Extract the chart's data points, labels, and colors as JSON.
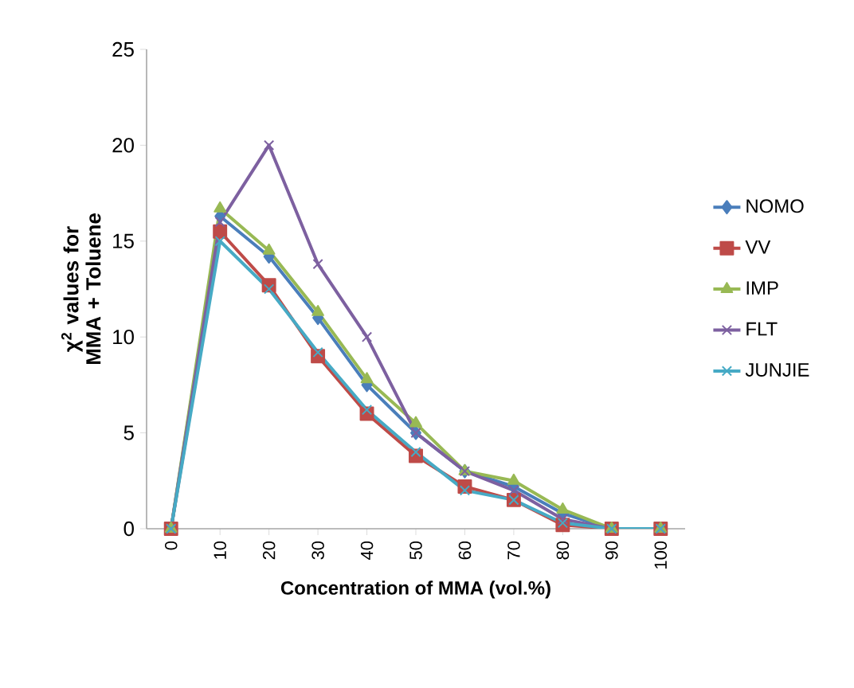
{
  "chart_data": {
    "type": "line",
    "xlabel": "Concentration of MMA (vol.%)",
    "ylabel": "χ$^{2}$ values for MMA + Toluene",
    "categories": [
      "0",
      "10",
      "20",
      "30",
      "40",
      "50",
      "60",
      "70",
      "80",
      "90",
      "100"
    ],
    "ylim": [
      0,
      25
    ],
    "yticks": [
      0,
      5,
      10,
      15,
      20,
      25
    ],
    "legend": "right",
    "grid": false,
    "series": [
      {
        "name": "NOMO",
        "color": "#4a7ebb",
        "marker": "diamond",
        "values": [
          0,
          16.3,
          14.2,
          11,
          7.5,
          5,
          3,
          2.2,
          0.8,
          0,
          0
        ]
      },
      {
        "name": "VV",
        "color": "#be4b48",
        "marker": "square",
        "values": [
          0,
          15.5,
          12.7,
          9,
          6,
          3.8,
          2.2,
          1.5,
          0.2,
          0,
          0
        ]
      },
      {
        "name": "IMP",
        "color": "#98b954",
        "marker": "triangle",
        "values": [
          0,
          16.7,
          14.5,
          11.3,
          7.8,
          5.5,
          3,
          2.5,
          1,
          0,
          0
        ]
      },
      {
        "name": "FLT",
        "color": "#7d60a0",
        "marker": "cross",
        "values": [
          0,
          16,
          20,
          13.8,
          10,
          5,
          3,
          2,
          0.5,
          0,
          0
        ]
      },
      {
        "name": "JUNJIE",
        "color": "#46aac5",
        "marker": "cross",
        "values": [
          0,
          15,
          12.5,
          9.2,
          6.2,
          4,
          2,
          1.5,
          0.3,
          0,
          0
        ]
      }
    ]
  }
}
